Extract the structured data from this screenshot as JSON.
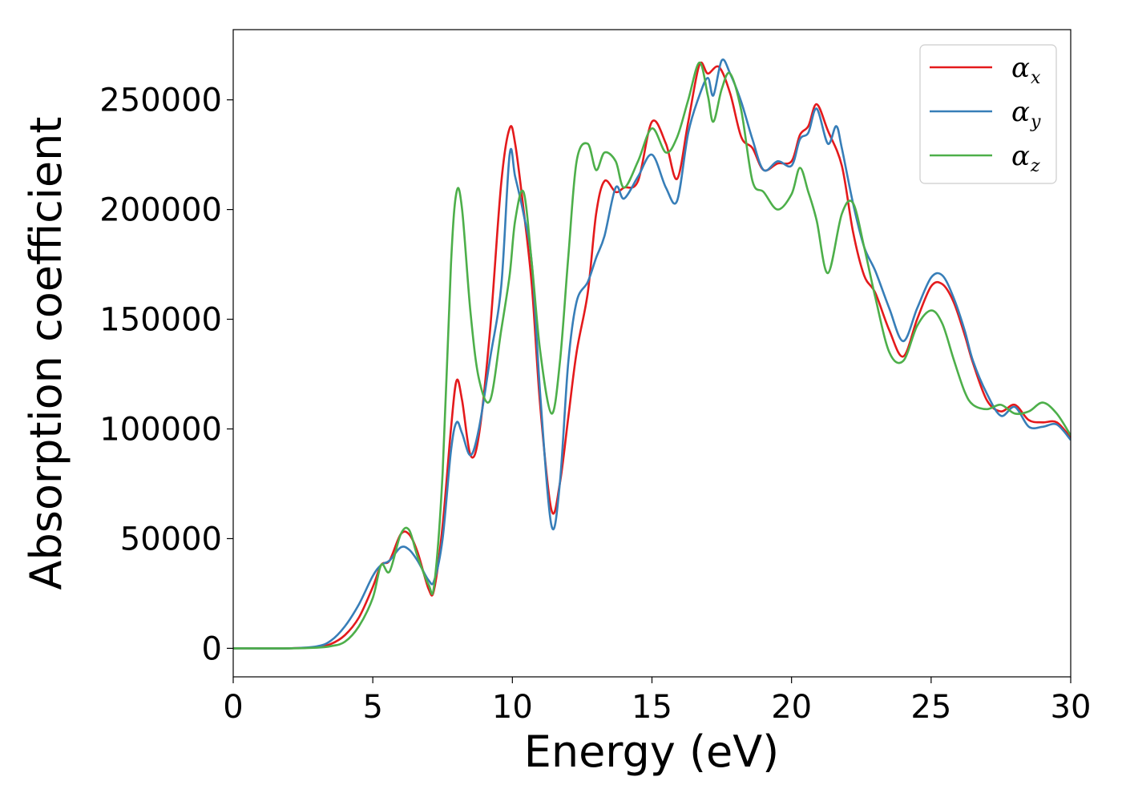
{
  "chart_data": {
    "type": "line",
    "title": "",
    "xlabel": "Energy (eV)",
    "ylabel": "Absorption coefficient",
    "xlim": [
      0,
      30
    ],
    "ylim": [
      -13000,
      282000
    ],
    "xticks": [
      0,
      5,
      10,
      15,
      20,
      25,
      30
    ],
    "yticks": [
      0,
      50000,
      100000,
      150000,
      200000,
      250000
    ],
    "grid": false,
    "legend_position": "top-right",
    "series": [
      {
        "name": "α",
        "subscript": "x",
        "color": "#e41a1c",
        "points": [
          [
            0,
            0
          ],
          [
            2,
            0
          ],
          [
            3,
            600
          ],
          [
            3.5,
            2000
          ],
          [
            4,
            6000
          ],
          [
            4.5,
            14000
          ],
          [
            5,
            28000
          ],
          [
            5.3,
            38000
          ],
          [
            5.6,
            40000
          ],
          [
            6,
            52000
          ],
          [
            6.3,
            52000
          ],
          [
            6.6,
            44000
          ],
          [
            7,
            27000
          ],
          [
            7.2,
            27000
          ],
          [
            7.5,
            56000
          ],
          [
            7.8,
            100000
          ],
          [
            8,
            122000
          ],
          [
            8.2,
            113000
          ],
          [
            8.5,
            88000
          ],
          [
            8.8,
            97000
          ],
          [
            9.2,
            145000
          ],
          [
            9.6,
            212000
          ],
          [
            9.9,
            237000
          ],
          [
            10.1,
            230000
          ],
          [
            10.4,
            200000
          ],
          [
            10.7,
            165000
          ],
          [
            11,
            110000
          ],
          [
            11.4,
            63000
          ],
          [
            11.7,
            75000
          ],
          [
            12,
            105000
          ],
          [
            12.3,
            135000
          ],
          [
            12.7,
            162000
          ],
          [
            13,
            198000
          ],
          [
            13.3,
            213000
          ],
          [
            13.7,
            208000
          ],
          [
            14,
            210000
          ],
          [
            14.5,
            213000
          ],
          [
            15,
            240000
          ],
          [
            15.5,
            230000
          ],
          [
            15.9,
            214000
          ],
          [
            16.3,
            240000
          ],
          [
            16.7,
            266000
          ],
          [
            17,
            262000
          ],
          [
            17.4,
            265000
          ],
          [
            17.8,
            253000
          ],
          [
            18.2,
            233000
          ],
          [
            18.6,
            228000
          ],
          [
            19,
            218000
          ],
          [
            19.5,
            221000
          ],
          [
            20,
            222000
          ],
          [
            20.3,
            234000
          ],
          [
            20.6,
            238000
          ],
          [
            20.9,
            248000
          ],
          [
            21.3,
            236000
          ],
          [
            21.8,
            220000
          ],
          [
            22.2,
            190000
          ],
          [
            22.6,
            170000
          ],
          [
            23,
            162000
          ],
          [
            23.5,
            145000
          ],
          [
            24,
            133000
          ],
          [
            24.5,
            150000
          ],
          [
            25,
            165000
          ],
          [
            25.4,
            166000
          ],
          [
            25.8,
            158000
          ],
          [
            26.2,
            143000
          ],
          [
            26.5,
            130000
          ],
          [
            27,
            113000
          ],
          [
            27.5,
            108000
          ],
          [
            28,
            111000
          ],
          [
            28.5,
            104000
          ],
          [
            29,
            103000
          ],
          [
            29.5,
            103000
          ],
          [
            30,
            96000
          ]
        ]
      },
      {
        "name": "α",
        "subscript": "y",
        "color": "#377eb8",
        "points": [
          [
            0,
            0
          ],
          [
            2,
            0
          ],
          [
            3,
            900
          ],
          [
            3.5,
            3500
          ],
          [
            4,
            10000
          ],
          [
            4.5,
            20000
          ],
          [
            5,
            33000
          ],
          [
            5.3,
            38000
          ],
          [
            5.6,
            40000
          ],
          [
            6,
            46000
          ],
          [
            6.3,
            45000
          ],
          [
            6.6,
            40000
          ],
          [
            7,
            31000
          ],
          [
            7.2,
            31000
          ],
          [
            7.5,
            50000
          ],
          [
            7.8,
            90000
          ],
          [
            8,
            103000
          ],
          [
            8.2,
            98000
          ],
          [
            8.5,
            88000
          ],
          [
            8.8,
            100000
          ],
          [
            9.2,
            132000
          ],
          [
            9.6,
            165000
          ],
          [
            9.9,
            225000
          ],
          [
            10.1,
            215000
          ],
          [
            10.4,
            198000
          ],
          [
            10.7,
            175000
          ],
          [
            11,
            115000
          ],
          [
            11.4,
            56000
          ],
          [
            11.7,
            75000
          ],
          [
            12,
            130000
          ],
          [
            12.3,
            158000
          ],
          [
            12.7,
            167000
          ],
          [
            13,
            178000
          ],
          [
            13.3,
            188000
          ],
          [
            13.7,
            210000
          ],
          [
            14,
            205000
          ],
          [
            14.5,
            215000
          ],
          [
            15,
            225000
          ],
          [
            15.5,
            210000
          ],
          [
            15.9,
            204000
          ],
          [
            16.3,
            235000
          ],
          [
            16.7,
            252000
          ],
          [
            17,
            260000
          ],
          [
            17.2,
            252000
          ],
          [
            17.5,
            268000
          ],
          [
            17.8,
            262000
          ],
          [
            18.2,
            249000
          ],
          [
            18.6,
            232000
          ],
          [
            19,
            218000
          ],
          [
            19.5,
            222000
          ],
          [
            20,
            220000
          ],
          [
            20.3,
            232000
          ],
          [
            20.6,
            235000
          ],
          [
            20.9,
            246000
          ],
          [
            21.3,
            230000
          ],
          [
            21.6,
            238000
          ],
          [
            21.8,
            228000
          ],
          [
            22.2,
            203000
          ],
          [
            22.6,
            183000
          ],
          [
            23,
            172000
          ],
          [
            23.5,
            155000
          ],
          [
            24,
            140000
          ],
          [
            24.5,
            155000
          ],
          [
            25,
            169000
          ],
          [
            25.4,
            170000
          ],
          [
            25.8,
            160000
          ],
          [
            26.2,
            145000
          ],
          [
            26.5,
            131000
          ],
          [
            27,
            116000
          ],
          [
            27.5,
            106000
          ],
          [
            28,
            110000
          ],
          [
            28.5,
            101000
          ],
          [
            29,
            101000
          ],
          [
            29.5,
            102000
          ],
          [
            30,
            95000
          ]
        ]
      },
      {
        "name": "α",
        "subscript": "z",
        "color": "#4daf4a",
        "points": [
          [
            0,
            0
          ],
          [
            2,
            0
          ],
          [
            3,
            300
          ],
          [
            3.5,
            1000
          ],
          [
            4,
            3000
          ],
          [
            4.5,
            10000
          ],
          [
            5,
            23000
          ],
          [
            5.3,
            38000
          ],
          [
            5.6,
            35000
          ],
          [
            6,
            52000
          ],
          [
            6.3,
            54000
          ],
          [
            6.6,
            42000
          ],
          [
            7,
            29000
          ],
          [
            7.2,
            29000
          ],
          [
            7.5,
            80000
          ],
          [
            7.8,
            175000
          ],
          [
            8,
            208000
          ],
          [
            8.2,
            200000
          ],
          [
            8.5,
            153000
          ],
          [
            8.8,
            123000
          ],
          [
            9.2,
            113000
          ],
          [
            9.6,
            145000
          ],
          [
            9.9,
            170000
          ],
          [
            10.1,
            195000
          ],
          [
            10.4,
            208000
          ],
          [
            10.7,
            175000
          ],
          [
            11,
            135000
          ],
          [
            11.4,
            107000
          ],
          [
            11.7,
            130000
          ],
          [
            12,
            178000
          ],
          [
            12.3,
            222000
          ],
          [
            12.7,
            230000
          ],
          [
            13,
            218000
          ],
          [
            13.3,
            226000
          ],
          [
            13.7,
            222000
          ],
          [
            14,
            210000
          ],
          [
            14.5,
            222000
          ],
          [
            15,
            237000
          ],
          [
            15.5,
            226000
          ],
          [
            15.9,
            233000
          ],
          [
            16.3,
            250000
          ],
          [
            16.7,
            267000
          ],
          [
            17,
            252000
          ],
          [
            17.2,
            240000
          ],
          [
            17.5,
            255000
          ],
          [
            17.8,
            262000
          ],
          [
            18.2,
            245000
          ],
          [
            18.6,
            213000
          ],
          [
            19,
            208000
          ],
          [
            19.5,
            200000
          ],
          [
            20,
            207000
          ],
          [
            20.3,
            219000
          ],
          [
            20.6,
            208000
          ],
          [
            20.9,
            195000
          ],
          [
            21.3,
            171000
          ],
          [
            21.8,
            198000
          ],
          [
            22.2,
            203000
          ],
          [
            22.6,
            183000
          ],
          [
            23,
            160000
          ],
          [
            23.5,
            135000
          ],
          [
            24,
            131000
          ],
          [
            24.5,
            147000
          ],
          [
            25,
            154000
          ],
          [
            25.4,
            148000
          ],
          [
            25.8,
            132000
          ],
          [
            26.2,
            117000
          ],
          [
            26.5,
            111000
          ],
          [
            27,
            109000
          ],
          [
            27.5,
            111000
          ],
          [
            28,
            107000
          ],
          [
            28.5,
            108000
          ],
          [
            29,
            112000
          ],
          [
            29.5,
            107000
          ],
          [
            30,
            97000
          ]
        ]
      }
    ]
  }
}
